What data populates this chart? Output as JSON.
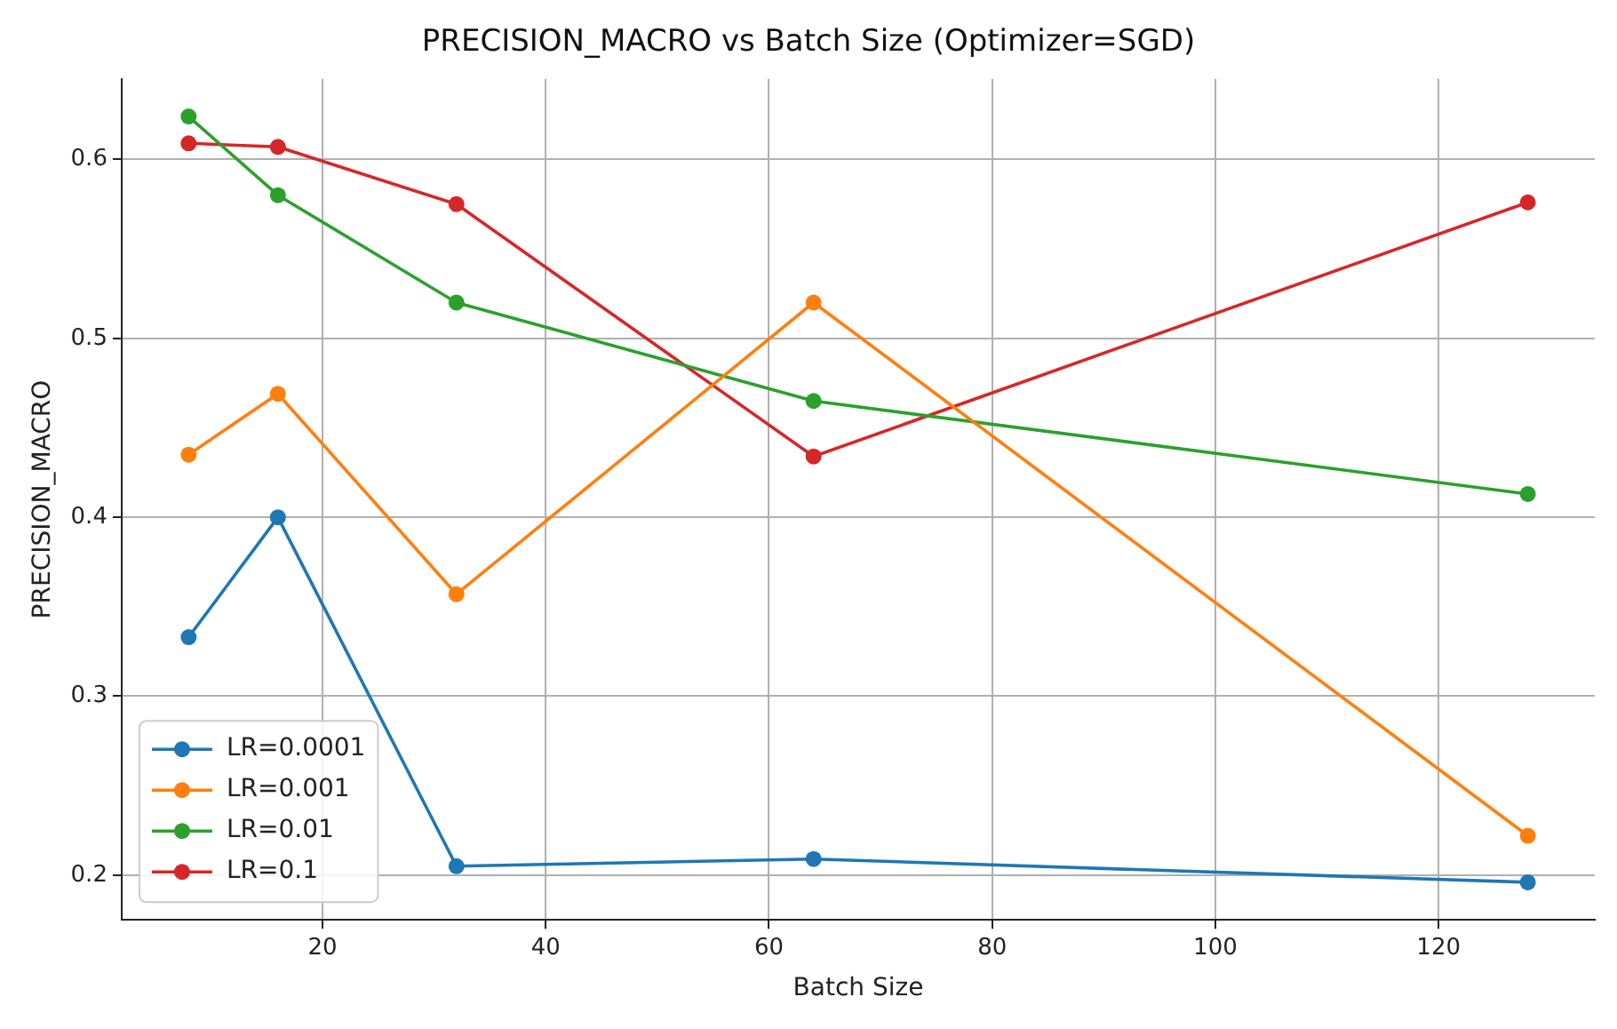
{
  "chart_data": {
    "type": "line",
    "title": "PRECISION_MACRO vs Batch Size (Optimizer=SGD)",
    "xlabel": "Batch Size",
    "ylabel": "PRECISION_MACRO",
    "x": [
      8,
      16,
      32,
      64,
      128
    ],
    "series": [
      {
        "name": "LR=0.0001",
        "color": "#1f77b4",
        "values": [
          0.333,
          0.4,
          0.205,
          0.209,
          0.196
        ]
      },
      {
        "name": "LR=0.001",
        "color": "#ff7f0e",
        "values": [
          0.435,
          0.469,
          0.357,
          0.52,
          0.222
        ]
      },
      {
        "name": "LR=0.01",
        "color": "#2ca02c",
        "values": [
          0.624,
          0.58,
          0.52,
          0.465,
          0.413
        ]
      },
      {
        "name": "LR=0.1",
        "color": "#d62728",
        "values": [
          0.609,
          0.607,
          0.575,
          0.434,
          0.576
        ]
      }
    ],
    "xlim": [
      2,
      134
    ],
    "xticks": [
      20,
      40,
      60,
      80,
      100,
      120
    ],
    "ylim": [
      0.175,
      0.645
    ],
    "yticks": [
      0.2,
      0.3,
      0.4,
      0.5,
      0.6
    ],
    "grid": true,
    "legend": "bottom left",
    "marker": "circle",
    "line_style": "solid"
  }
}
